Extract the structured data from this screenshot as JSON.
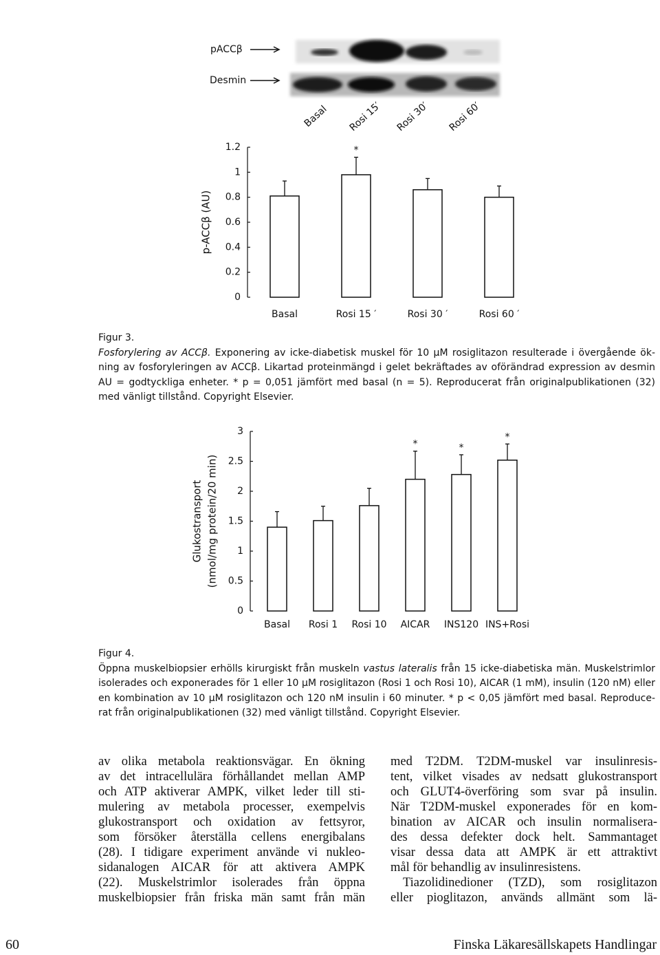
{
  "blot": {
    "labels": [
      "pACCβ",
      "Desmin"
    ],
    "lanes": [
      "Basal",
      "Rosi 15′",
      "Rosi 30′",
      "Rosi 60′"
    ]
  },
  "chart_data": [
    {
      "type": "bar",
      "ylabel": "p-ACCβ (AU)",
      "categories": [
        "Basal",
        "Rosi 15 ′",
        "Rosi 30 ′",
        "Rosi 60 ′"
      ],
      "values": [
        0.81,
        0.98,
        0.86,
        0.8
      ],
      "errors": [
        0.12,
        0.14,
        0.09,
        0.09
      ],
      "markers": [
        null,
        "*",
        null,
        null
      ],
      "color": "#ffffff",
      "ylim": [
        0,
        1.2
      ],
      "yticks": [
        0,
        0.2,
        0.4,
        0.6,
        0.8,
        1,
        1.2
      ]
    },
    {
      "type": "bar",
      "ylabel": [
        "Glukostransport",
        "(nmol/mg protein/20 min)"
      ],
      "categories": [
        "Basal",
        "Rosi 1",
        "Rosi 10",
        "AICAR",
        "INS120",
        "INS+Rosi"
      ],
      "values": [
        1.4,
        1.51,
        1.76,
        2.2,
        2.28,
        2.52
      ],
      "errors": [
        0.26,
        0.24,
        0.29,
        0.47,
        0.33,
        0.27
      ],
      "markers": [
        null,
        null,
        null,
        "*",
        "*",
        "*"
      ],
      "color": "#ffffff",
      "ylim": [
        0,
        3
      ],
      "yticks": [
        0,
        0.5,
        1,
        1.5,
        2,
        2.5,
        3
      ]
    }
  ],
  "figure3": {
    "label": "Figur 3.",
    "title": "Fosforylering av ACCβ.",
    "lines": [
      "Exponering av icke-diabetisk muskel för 10 μM rosiglitazon resulterade i övergående ök-",
      "ning av fosforyleringen av ACCβ. Likartad proteinmängd i gelet bekräftades av oförändrad expression av desmin",
      "AU = godtyckliga enheter. * p = 0,051 jämfört med basal (n = 5). Reproducerat från originalpublikationen (32)",
      "med vänligt tillstånd. Copyright Elsevier."
    ]
  },
  "figure4": {
    "label": "Figur 4.",
    "lines": [
      [
        "Öppna muskelbiopsier erhölls kirurgiskt från muskeln",
        "vastus lateralis",
        "från 15 icke-diabetiska män. Muskelstrimlor"
      ],
      "isolerades och exponerades för 1 eller 10 μM rosiglitazon (Rosi 1 och Rosi 10), AICAR (1 mM), insulin (120 nM) eller",
      "en kombination av 10 μM rosiglitazon och 120 nM insulin  i 60 minuter. * p < 0,05 jämfört med basal. Reproduce-",
      "rat från originalpublikationen (32) med vänligt tillstånd. Copyright Elsevier."
    ]
  },
  "body": {
    "left": [
      "av olika metabola reaktionsvägar. En ökning",
      "av det intracellulära förhållandet mellan AMP",
      "och ATP aktiverar AMPK, vilket leder till sti-",
      "mulering av metabola processer, exempelvis",
      "glukostransport och oxidation av fettsyror,",
      "som försöker återställa cellens energibalans",
      "(28). I tidigare experiment använde vi nukleo-",
      "sidanalogen AICAR för att aktivera AMPK",
      "(22). Muskelstrimlor isolerades från öppna",
      "muskelbiopsier från friska män samt från män"
    ],
    "right": [
      [
        "med T2DM. T2DM-muskel var insulinresis-",
        "tent, vilket visades av nedsatt glukostransport",
        "och GLUT4-överföring som svar på insulin.",
        "När T2DM-muskel exponerades för en kom-",
        "bination av AICAR och insulin normalisera-",
        "des dessa defekter dock helt. Sammantaget",
        "visar dessa data att AMPK är ett attraktivt",
        "mål för behandlig av insulinresistens."
      ],
      [
        "Tiazolidinedioner (TZD), som rosiglitazon",
        "eller pioglitazon, används allmänt som lä-"
      ]
    ]
  },
  "footer": {
    "page": "60",
    "journal": "Finska Läkaresällskapets Handlingar"
  }
}
